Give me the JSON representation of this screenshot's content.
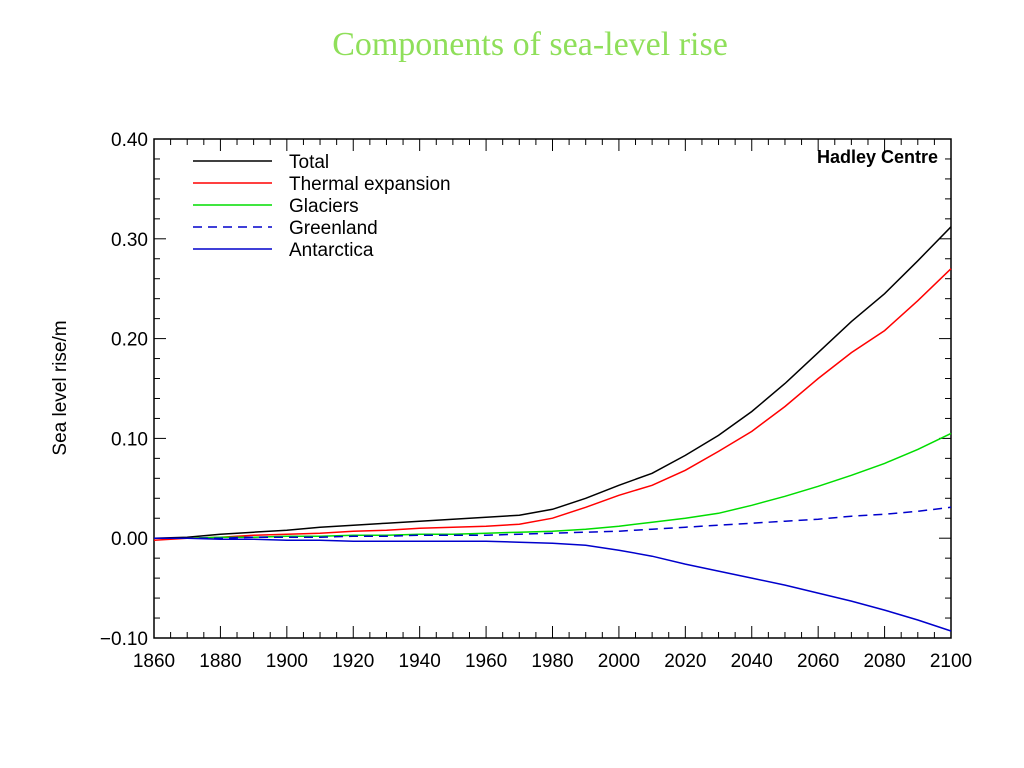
{
  "slide": {
    "title": "Components of sea-level rise"
  },
  "colors": {
    "title": "#8fdf5a",
    "total": "#000000",
    "thermal": "#ff0000",
    "glaciers": "#00dd00",
    "greenland": "#0000cc",
    "antarctica": "#0000cc"
  },
  "chart_data": {
    "type": "line",
    "title": "",
    "annotation": "Hadley Centre",
    "xlabel": "",
    "ylabel": "Sea level rise/m",
    "xlim": [
      1860,
      2100
    ],
    "ylim": [
      -0.1,
      0.4
    ],
    "grid": false,
    "legend_position": "top-left",
    "xticks": [
      1860,
      1880,
      1900,
      1920,
      1940,
      1960,
      1980,
      2000,
      2020,
      2040,
      2060,
      2080,
      2100
    ],
    "xtick_labels": [
      "1860",
      "1880",
      "1900",
      "1920",
      "1940",
      "1960",
      "1980",
      "2000",
      "2020",
      "2040",
      "2060",
      "2080",
      "2100"
    ],
    "yticks": [
      -0.1,
      0.0,
      0.1,
      0.2,
      0.3,
      0.4
    ],
    "ytick_labels": [
      "−0.10",
      "0.00",
      "0.10",
      "0.20",
      "0.30",
      "0.40"
    ],
    "x": [
      1860,
      1870,
      1880,
      1890,
      1900,
      1910,
      1920,
      1930,
      1940,
      1950,
      1960,
      1970,
      1980,
      1990,
      2000,
      2010,
      2020,
      2030,
      2040,
      2050,
      2060,
      2070,
      2080,
      2090,
      2100
    ],
    "series": [
      {
        "name": "Total",
        "style": "solid",
        "color": "#000000",
        "values": [
          0.0,
          0.001,
          0.004,
          0.006,
          0.008,
          0.011,
          0.013,
          0.015,
          0.017,
          0.019,
          0.021,
          0.023,
          0.029,
          0.04,
          0.053,
          0.065,
          0.083,
          0.103,
          0.127,
          0.155,
          0.186,
          0.217,
          0.245,
          0.278,
          0.312
        ]
      },
      {
        "name": "Thermal expansion",
        "style": "solid",
        "color": "#ff0000",
        "values": [
          -0.002,
          0.0,
          0.001,
          0.003,
          0.004,
          0.005,
          0.007,
          0.008,
          0.01,
          0.011,
          0.012,
          0.014,
          0.02,
          0.031,
          0.043,
          0.053,
          0.068,
          0.087,
          0.107,
          0.132,
          0.16,
          0.186,
          0.208,
          0.238,
          0.27
        ]
      },
      {
        "name": "Glaciers",
        "style": "solid",
        "color": "#00dd00",
        "values": [
          0.0,
          0.0,
          0.001,
          0.001,
          0.002,
          0.002,
          0.003,
          0.003,
          0.004,
          0.004,
          0.005,
          0.006,
          0.007,
          0.009,
          0.012,
          0.016,
          0.02,
          0.025,
          0.033,
          0.042,
          0.052,
          0.063,
          0.075,
          0.089,
          0.105
        ]
      },
      {
        "name": "Greenland",
        "style": "dashed",
        "color": "#0000cc",
        "values": [
          0.0,
          0.0,
          0.0,
          0.001,
          0.001,
          0.001,
          0.002,
          0.002,
          0.003,
          0.003,
          0.003,
          0.004,
          0.005,
          0.006,
          0.007,
          0.009,
          0.011,
          0.013,
          0.015,
          0.017,
          0.019,
          0.022,
          0.024,
          0.027,
          0.031
        ]
      },
      {
        "name": "Antarctica",
        "style": "solid",
        "color": "#0000cc",
        "values": [
          0.0,
          0.0,
          -0.001,
          -0.001,
          -0.002,
          -0.002,
          -0.003,
          -0.003,
          -0.003,
          -0.003,
          -0.003,
          -0.004,
          -0.005,
          -0.007,
          -0.012,
          -0.018,
          -0.026,
          -0.033,
          -0.04,
          -0.047,
          -0.055,
          -0.063,
          -0.072,
          -0.082,
          -0.093
        ]
      }
    ]
  }
}
